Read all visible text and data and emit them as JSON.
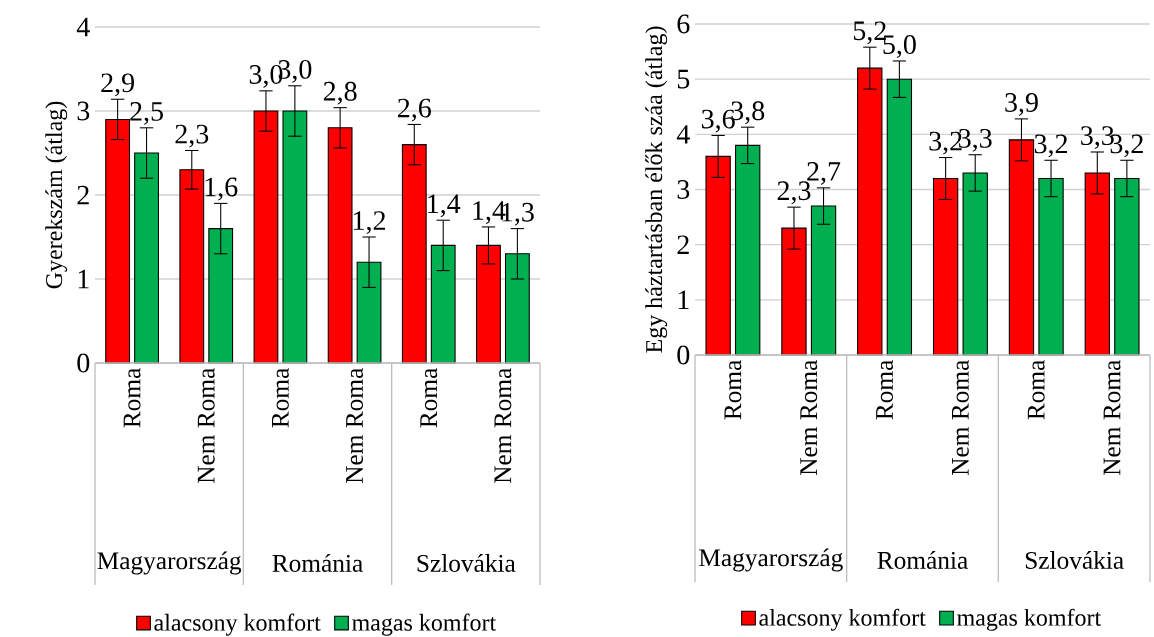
{
  "chart_data": [
    {
      "type": "bar",
      "ylabel": "Gyerekszám (átlag)",
      "categories": [
        "Roma",
        "Nem Roma",
        "Roma",
        "Nem Roma",
        "Roma",
        "Nem Roma"
      ],
      "annotations": [
        "Magyarország",
        "Románia",
        "Szlovákia"
      ],
      "series": [
        {
          "name": "alacsony komfort",
          "color": "#ff0000",
          "values": [
            2.9,
            2.3,
            3.0,
            2.8,
            2.6,
            1.4
          ],
          "errors": [
            0.24,
            0.23,
            0.24,
            0.24,
            0.24,
            0.22
          ],
          "value_labels": [
            "2,9",
            "2,3",
            "3,0",
            "2,8",
            "2,6",
            "1,4"
          ]
        },
        {
          "name": "magas komfort",
          "color": "#00b050",
          "values": [
            2.5,
            1.6,
            3.0,
            1.2,
            1.4,
            1.3
          ],
          "errors": [
            0.3,
            0.3,
            0.3,
            0.3,
            0.3,
            0.3
          ],
          "value_labels": [
            "2,5",
            "1,6",
            "3,0",
            "1,2",
            "1,4",
            "1,3"
          ]
        }
      ],
      "ylim": [
        0,
        4
      ],
      "yticks": [
        0,
        1,
        2,
        3,
        4
      ],
      "grid": "y",
      "legend": "bottom"
    },
    {
      "type": "bar",
      "ylabel": "Egy háztartásban élők száa (átlag)",
      "categories": [
        "Roma",
        "Nem Roma",
        "Roma",
        "Nem Roma",
        "Roma",
        "Nem Roma"
      ],
      "annotations": [
        "Magyarország",
        "Románia",
        "Szlovákia"
      ],
      "series": [
        {
          "name": "alacsony komfort",
          "color": "#ff0000",
          "values": [
            3.6,
            2.3,
            5.2,
            3.2,
            3.9,
            3.3
          ],
          "errors": [
            0.38,
            0.38,
            0.38,
            0.38,
            0.38,
            0.38
          ],
          "value_labels": [
            "3,6",
            "2,3",
            "5,2",
            "3,2",
            "3,9",
            "3,3"
          ]
        },
        {
          "name": "magas komfort",
          "color": "#00b050",
          "values": [
            3.8,
            2.7,
            5.0,
            3.3,
            3.2,
            3.2
          ],
          "errors": [
            0.33,
            0.33,
            0.33,
            0.33,
            0.33,
            0.33
          ],
          "value_labels": [
            "3,8",
            "2,7",
            "5,0",
            "3,3",
            "3,2",
            "3,2"
          ]
        }
      ],
      "ylim": [
        0,
        6
      ],
      "yticks": [
        0,
        1,
        2,
        3,
        4,
        5,
        6
      ],
      "grid": "y",
      "legend": "bottom"
    }
  ]
}
